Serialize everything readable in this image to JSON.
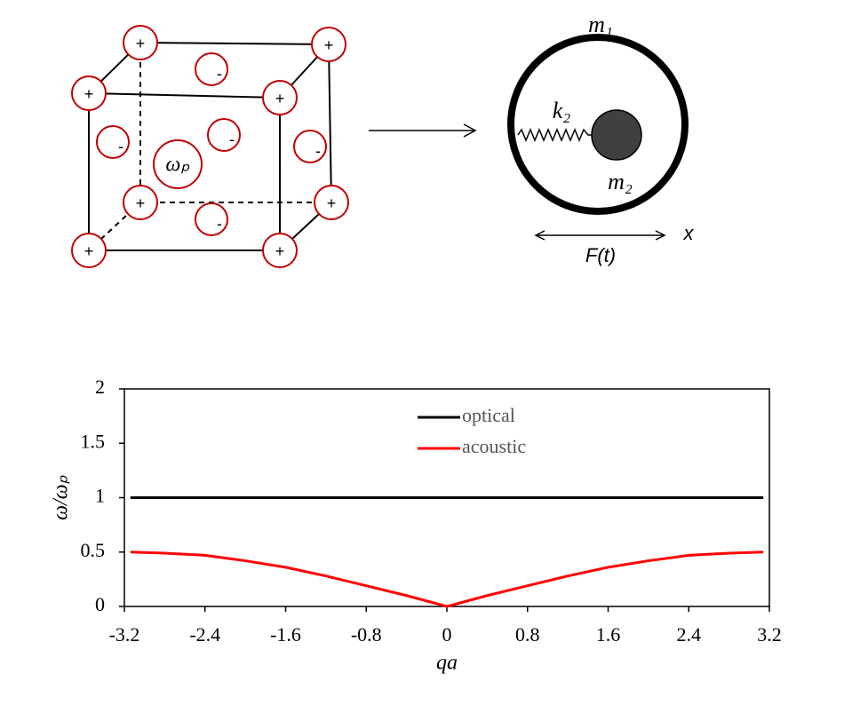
{
  "diagram": {
    "ions": [
      "+",
      "+",
      "+",
      "+",
      "+",
      "+",
      "+",
      "+",
      "-",
      "-",
      "-",
      "-",
      "-"
    ],
    "plasma_label": "ωₚ",
    "outer_mass": "m₁",
    "spring": "k₂",
    "inner_mass": "m₂",
    "force": "F(t)",
    "axis": "x"
  },
  "chart_data": {
    "type": "line",
    "x": [
      -3.14,
      -2.8,
      -2.4,
      -2,
      -1.6,
      -1.2,
      -0.8,
      -0.4,
      0,
      0.4,
      0.8,
      1.2,
      1.6,
      2,
      2.4,
      2.8,
      3.14
    ],
    "series": [
      {
        "name": "optical",
        "color": "#000000",
        "values": [
          1,
          1,
          1,
          1,
          1,
          1,
          1,
          1,
          1,
          1,
          1,
          1,
          1,
          1,
          1,
          1,
          1
        ]
      },
      {
        "name": "acoustic",
        "color": "#ff0000",
        "values": [
          0.5,
          0.49,
          0.47,
          0.42,
          0.36,
          0.28,
          0.19,
          0.1,
          0,
          0.1,
          0.19,
          0.28,
          0.36,
          0.42,
          0.47,
          0.49,
          0.5
        ]
      }
    ],
    "xlabel": "qa",
    "ylabel": "ω/ωₚ",
    "xlim": [
      -3.2,
      3.2
    ],
    "xticks": [
      -3.2,
      -2.4,
      -1.6,
      -0.8,
      0,
      0.8,
      1.6,
      2.4,
      3.2
    ],
    "ylim": [
      0,
      2
    ],
    "yticks": [
      0,
      0.5,
      1,
      1.5,
      2
    ],
    "legend": "top"
  }
}
